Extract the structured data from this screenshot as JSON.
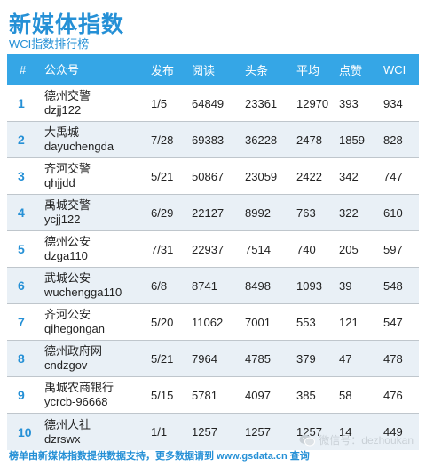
{
  "header": {
    "title": "新媒体指数",
    "subtitle": "WCI指数排行榜"
  },
  "columns": {
    "rank": "#",
    "account": "公众号",
    "published": "发布",
    "reads": "阅读",
    "headline": "头条",
    "average": "平均",
    "likes": "点赞",
    "wci": "WCI"
  },
  "rows": [
    {
      "rank": "1",
      "name": "德州交警",
      "id": "dzjj122",
      "published": "1/5",
      "reads": "64849",
      "headline": "23361",
      "average": "12970",
      "likes": "393",
      "wci": "934"
    },
    {
      "rank": "2",
      "name": "大禹城",
      "id": "dayuchengda",
      "published": "7/28",
      "reads": "69383",
      "headline": "36228",
      "average": "2478",
      "likes": "1859",
      "wci": "828"
    },
    {
      "rank": "3",
      "name": "齐河交警",
      "id": "qhjjdd",
      "published": "5/21",
      "reads": "50867",
      "headline": "23059",
      "average": "2422",
      "likes": "342",
      "wci": "747"
    },
    {
      "rank": "4",
      "name": "禹城交警",
      "id": "ycjj122",
      "published": "6/29",
      "reads": "22127",
      "headline": "8992",
      "average": "763",
      "likes": "322",
      "wci": "610"
    },
    {
      "rank": "5",
      "name": "德州公安",
      "id": "dzga110",
      "published": "7/31",
      "reads": "22937",
      "headline": "7514",
      "average": "740",
      "likes": "205",
      "wci": "597"
    },
    {
      "rank": "6",
      "name": "武城公安",
      "id": "wuchengga110",
      "published": "6/8",
      "reads": "8741",
      "headline": "8498",
      "average": "1093",
      "likes": "39",
      "wci": "548"
    },
    {
      "rank": "7",
      "name": "齐河公安",
      "id": "qihegongan",
      "published": "5/20",
      "reads": "11062",
      "headline": "7001",
      "average": "553",
      "likes": "121",
      "wci": "547"
    },
    {
      "rank": "8",
      "name": "德州政府网",
      "id": "cndzgov",
      "published": "5/21",
      "reads": "7964",
      "headline": "4785",
      "average": "379",
      "likes": "47",
      "wci": "478"
    },
    {
      "rank": "9",
      "name": "禹城农商银行",
      "id": "ycrcb-96668",
      "published": "5/15",
      "reads": "5781",
      "headline": "4097",
      "average": "385",
      "likes": "58",
      "wci": "476"
    },
    {
      "rank": "10",
      "name": "德州人社",
      "id": "dzrswx",
      "published": "1/1",
      "reads": "1257",
      "headline": "1257",
      "average": "1257",
      "likes": "14",
      "wci": "449"
    }
  ],
  "footer": {
    "text": "榜单由新媒体指数提供数据支持，更多数据请到 www.gsdata.cn 查询"
  },
  "watermark": {
    "text": "微信号：dezhoukan",
    "icon": "wechat-icon"
  },
  "colors": {
    "accent": "#2590d6",
    "header_bg": "#35a6e6",
    "alt_row_bg": "#e9f0f6"
  }
}
